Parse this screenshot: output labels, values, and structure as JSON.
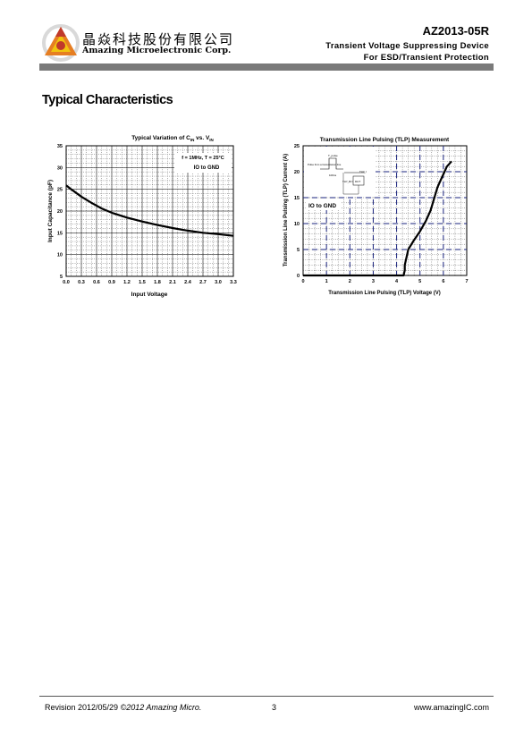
{
  "header": {
    "company_cn": "晶焱科技股份有限公司",
    "company_en": "Amazing Microelectronic Corp.",
    "part_number": "AZ2013-05R",
    "product_line1": "Transient Voltage Suppressing Device",
    "product_line2": "For ESD/Transient Protection",
    "bar_color": "#7a7a7a",
    "logo_colors": [
      "#c0392b",
      "#e67e22",
      "#f1c40f"
    ]
  },
  "section_title": "Typical Characteristics",
  "charts": [
    {
      "title_prefix": "Typical Variation of C",
      "title_sub1": "IN",
      "title_mid": " vs. V",
      "title_sub2": "IN",
      "xlabel": "Input Voltage",
      "ylabel": "Input Capacitance (pF)",
      "annotation1": "f = 1MHz, T = 25°C",
      "annotation2": "IO to GND"
    },
    {
      "title": "Transmission Line Pulsing (TLP) Measurement",
      "xlabel": "Transmission Line Pulsing (TLP) Voltage (V)",
      "ylabel": "Transmission Line Pulsing (TLP) Current (A)",
      "annotation": "IO to GND",
      "inset_labels": {
        "pulse": "Pulse from a transmission line",
        "tlp_i": "TLP_I",
        "tlp_v": "TLP_V",
        "dut": "DUT",
        "hundred_ns": "100ns",
        "pulse_label": "T_pulse"
      }
    }
  ],
  "chart_data": [
    {
      "type": "line",
      "x": [
        0.0,
        0.1,
        0.3,
        0.5,
        0.7,
        0.9,
        1.2,
        1.5,
        1.8,
        2.1,
        2.4,
        2.7,
        3.0,
        3.3
      ],
      "series": [
        {
          "values": [
            25.9,
            25.0,
            23.3,
            21.9,
            20.6,
            19.6,
            18.5,
            17.6,
            16.8,
            16.1,
            15.5,
            15.0,
            14.7,
            14.3
          ]
        }
      ],
      "xlim": [
        0.0,
        3.3
      ],
      "ylim": [
        5,
        35
      ],
      "xticks": [
        "0.0",
        "0.3",
        "0.6",
        "0.9",
        "1.2",
        "1.5",
        "1.8",
        "2.1",
        "2.4",
        "2.7",
        "3.0",
        "3.3"
      ],
      "yticks": [
        "5",
        "10",
        "15",
        "20",
        "25",
        "30",
        "35"
      ],
      "grid": true
    },
    {
      "type": "line",
      "x": [
        0.0,
        4.3,
        4.35,
        4.35,
        4.4,
        4.5,
        4.7,
        5.0,
        5.25,
        5.45,
        5.55,
        5.65,
        5.75,
        5.85,
        5.95,
        6.05,
        6.15,
        6.25,
        6.35
      ],
      "series": [
        {
          "values": [
            0.0,
            0.0,
            1.0,
            2.0,
            3.0,
            5.0,
            6.5,
            8.5,
            10.5,
            12.5,
            14.0,
            15.5,
            17.0,
            18.0,
            19.0,
            20.0,
            21.0,
            21.5,
            22.0
          ]
        }
      ],
      "xlim": [
        0,
        7
      ],
      "ylim": [
        0,
        25
      ],
      "xticks": [
        "0",
        "1",
        "2",
        "3",
        "4",
        "5",
        "6",
        "7"
      ],
      "yticks": [
        "0",
        "5",
        "10",
        "15",
        "20",
        "25"
      ],
      "grid": true
    }
  ],
  "footer": {
    "revision": "Revision 2012/05/29",
    "copyright": "©2012 Amazing Micro.",
    "page_number": "3",
    "website": "www.amazingIC.com"
  }
}
